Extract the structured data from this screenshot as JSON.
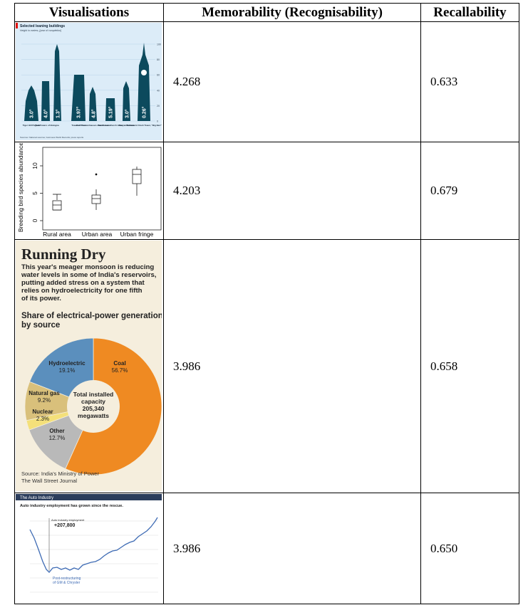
{
  "table": {
    "header": [
      "Visualisations",
      "Memorability (Recognisability)",
      "Recallability"
    ],
    "rows": [
      {
        "visualisation": {
          "title": "Selected leaning buildings",
          "subtitle": "Height in metres, [year of completion]",
          "yticks": [
            "100",
            "80",
            "60",
            "40",
            "20",
            "0"
          ],
          "angles": [
            "3.0°",
            "4.0°",
            "1.3°",
            "3.97°",
            "4.8°",
            "5.19°",
            "3.0°",
            "0.26°"
          ],
          "names": [
            "Tiger Hill Pagoda",
            "Two Towers of Bologna",
            "Tower of Pisa",
            "Bad Frankenhausen church tower",
            "Suurhusen church tower",
            "Nevyansk tower",
            "Parliament Clock Tower, \"Big Ben\""
          ],
          "source": "Sources: National sources; Guinness World Records; press reports"
        },
        "memorability": "4.268",
        "recallability": "0.633"
      },
      {
        "visualisation": {
          "ylabel": "Breeding bird species abundance",
          "yticks": [
            "0",
            "5",
            "10"
          ],
          "categories": [
            "Rural area",
            "Urban area",
            "Urban fringe"
          ]
        },
        "memorability": "4.203",
        "recallability": "0.679"
      },
      {
        "visualisation": {
          "title": "Running Dry",
          "intro": [
            "This year's meager monsoon is reducing",
            "water levels in some of India's reservoirs,",
            "putting added stress on a system that",
            "relies on hydroelectricity for one fifth",
            "of its power."
          ],
          "subtitle": [
            "Share of electrical-power generation,",
            "by source"
          ],
          "slices": [
            {
              "name": "Coal",
              "value": 56.7,
              "label": "56.7%",
              "color": "#ef8a22"
            },
            {
              "name": "Other",
              "value": 12.7,
              "label": "12.7%",
              "color": "#b9b9b9"
            },
            {
              "name": "Nuclear",
              "value": 2.3,
              "label": "2.3%",
              "color": "#f4e07a"
            },
            {
              "name": "Natural gas",
              "value": 9.2,
              "label": "9.2%",
              "color": "#d9c07b"
            },
            {
              "name": "Hydroelectric",
              "value": 19.1,
              "label": "19.1%",
              "color": "#5b8fbd"
            }
          ],
          "center": [
            "Total installed",
            "capacity",
            "205,340",
            "megawatts"
          ],
          "source": [
            "Source: India's Ministry of Power",
            "The Wall Street Journal"
          ]
        },
        "memorability": "3.986",
        "recallability": "0.658"
      },
      {
        "visualisation": {
          "section": "The Auto Industry",
          "title": "Auto industry employment has grown since the rescue.",
          "callout": "Auto industry employment",
          "change": "+207,800",
          "note": [
            "Post-restructuring",
            "of GM & Chrysler"
          ]
        },
        "memorability": "3.986",
        "recallability": "0.650"
      }
    ]
  }
}
